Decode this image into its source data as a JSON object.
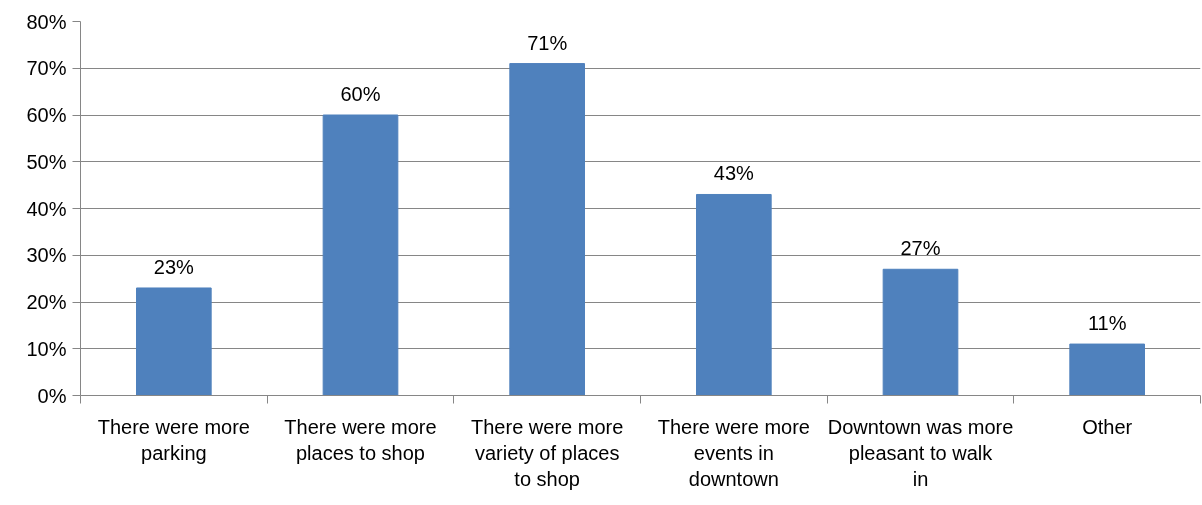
{
  "chart_data": {
    "type": "bar",
    "categories": [
      "There were more parking",
      "There were more places to shop",
      "There were more variety of places to shop",
      "There were more events in downtown",
      "Downtown was more pleasant to walk in",
      "Other"
    ],
    "values": [
      23,
      60,
      71,
      43,
      27,
      11
    ],
    "value_labels": [
      "23%",
      "60%",
      "71%",
      "43%",
      "27%",
      "11%"
    ],
    "color": "#4f81bd",
    "ylim": [
      0,
      80
    ],
    "yticks": [
      {
        "value": 0,
        "label": "0%"
      },
      {
        "value": 10,
        "label": "10%"
      },
      {
        "value": 20,
        "label": "20%"
      },
      {
        "value": 30,
        "label": "30%"
      },
      {
        "value": 40,
        "label": "40%"
      },
      {
        "value": 50,
        "label": "50%"
      },
      {
        "value": 60,
        "label": "60%"
      },
      {
        "value": 70,
        "label": "70%"
      },
      {
        "value": 80,
        "label": "80%"
      }
    ],
    "grid": "y"
  }
}
